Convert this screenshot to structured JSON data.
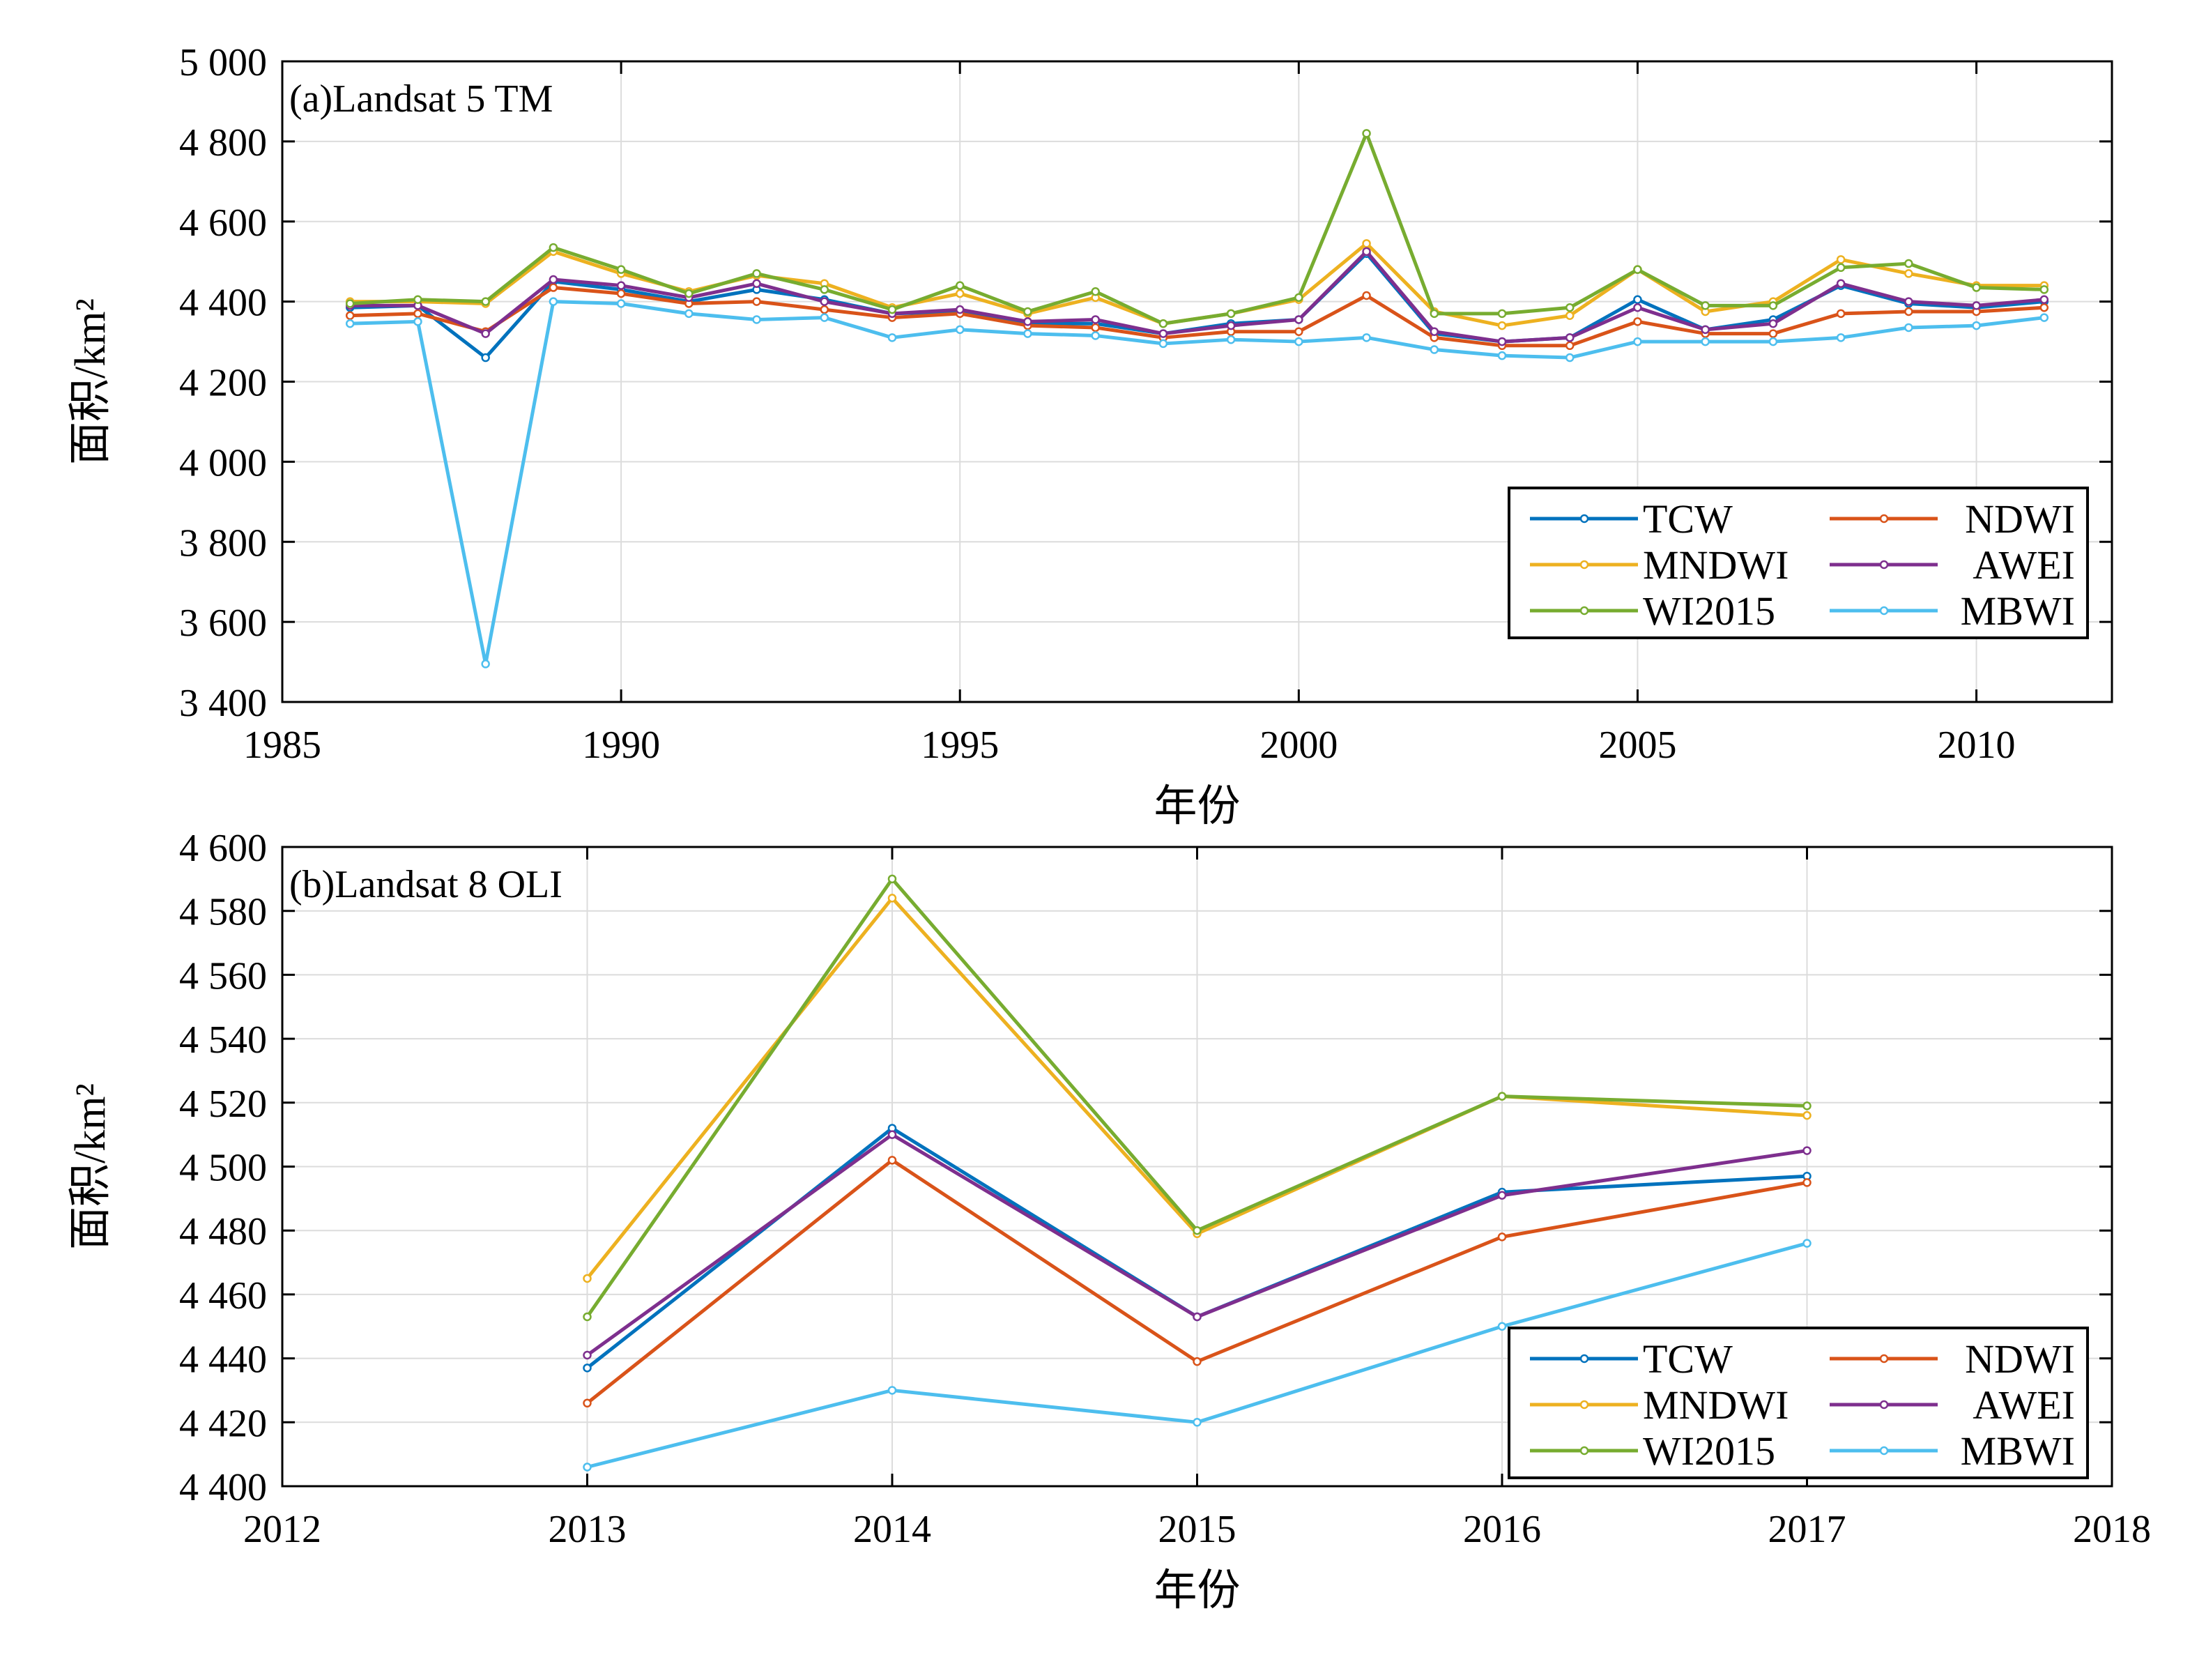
{
  "colors": {
    "TCW": "#0072BD",
    "NDWI": "#D95319",
    "MNDWI": "#EDB120",
    "AWEI": "#7E2F8E",
    "WI2015": "#77AC30",
    "MBWI": "#4DBEEE"
  },
  "chart_data": [
    {
      "type": "line",
      "title": "(a)Landsat 5 TM",
      "xlabel": "年份",
      "ylabel": "面积/km²",
      "xlim": [
        1985,
        2012
      ],
      "ylim": [
        3400,
        5000
      ],
      "xticks": [
        1985,
        1990,
        1995,
        2000,
        2005,
        2010
      ],
      "xtick_labels": [
        "1985",
        "1990",
        "1995",
        "2000",
        "2005",
        "2010"
      ],
      "yticks": [
        3400,
        3600,
        3800,
        4000,
        4200,
        4400,
        4600,
        4800,
        5000
      ],
      "ytick_labels": [
        "3 400",
        "3 600",
        "3 800",
        "4 000",
        "4 200",
        "4 400",
        "4 600",
        "4 800",
        "5 000"
      ],
      "grid": true,
      "legend_position": "lower-right",
      "x": [
        1986,
        1987,
        1988,
        1989,
        1990,
        1991,
        1992,
        1993,
        1994,
        1995,
        1996,
        1997,
        1998,
        1999,
        2000,
        2001,
        2002,
        2003,
        2004,
        2005,
        2006,
        2007,
        2008,
        2009,
        2010,
        2011
      ],
      "series": [
        {
          "name": "TCW",
          "values": [
            4385,
            4390,
            4260,
            4450,
            4430,
            4400,
            4430,
            4405,
            4370,
            4375,
            4345,
            4345,
            4320,
            4345,
            4355,
            4520,
            4320,
            4300,
            4310,
            4405,
            4330,
            4355,
            4440,
            4395,
            4385,
            4400
          ]
        },
        {
          "name": "NDWI",
          "values": [
            4365,
            4370,
            4325,
            4435,
            4420,
            4395,
            4400,
            4380,
            4360,
            4370,
            4340,
            4335,
            4310,
            4325,
            4325,
            4415,
            4310,
            4290,
            4290,
            4350,
            4320,
            4320,
            4370,
            4375,
            4375,
            4385
          ]
        },
        {
          "name": "MNDWI",
          "values": [
            4400,
            4400,
            4395,
            4525,
            4470,
            4425,
            4465,
            4445,
            4385,
            4420,
            4370,
            4410,
            4345,
            4370,
            4405,
            4545,
            4375,
            4340,
            4365,
            4480,
            4375,
            4400,
            4505,
            4470,
            4440,
            4440
          ]
        },
        {
          "name": "AWEI",
          "values": [
            4390,
            4390,
            4320,
            4455,
            4440,
            4410,
            4445,
            4400,
            4370,
            4380,
            4350,
            4355,
            4320,
            4340,
            4355,
            4525,
            4325,
            4300,
            4310,
            4385,
            4330,
            4345,
            4445,
            4400,
            4390,
            4405
          ]
        },
        {
          "name": "WI2015",
          "values": [
            4395,
            4405,
            4400,
            4535,
            4480,
            4420,
            4470,
            4430,
            4380,
            4440,
            4375,
            4425,
            4345,
            4370,
            4410,
            4820,
            4370,
            4370,
            4385,
            4480,
            4390,
            4390,
            4485,
            4495,
            4435,
            4430
          ]
        },
        {
          "name": "MBWI",
          "values": [
            4345,
            4350,
            3495,
            4400,
            4395,
            4370,
            4355,
            4360,
            4310,
            4330,
            4320,
            4315,
            4295,
            4305,
            4300,
            4310,
            4280,
            4265,
            4260,
            4300,
            4300,
            4300,
            4310,
            4335,
            4340,
            4360
          ]
        }
      ]
    },
    {
      "type": "line",
      "title": "(b)Landsat 8 OLI",
      "xlabel": "年份",
      "ylabel": "面积/km²",
      "xlim": [
        2012,
        2018
      ],
      "ylim": [
        4400,
        4600
      ],
      "xticks": [
        2012,
        2013,
        2014,
        2015,
        2016,
        2017,
        2018
      ],
      "xtick_labels": [
        "2012",
        "2013",
        "2014",
        "2015",
        "2016",
        "2017",
        "2018"
      ],
      "yticks": [
        4400,
        4420,
        4440,
        4460,
        4480,
        4500,
        4520,
        4540,
        4560,
        4580,
        4600
      ],
      "ytick_labels": [
        "4 400",
        "4 420",
        "4 440",
        "4 460",
        "4 480",
        "4 500",
        "4 520",
        "4 540",
        "4 560",
        "4 580",
        "4 600"
      ],
      "grid": true,
      "legend_position": "lower-right",
      "x": [
        2013,
        2014,
        2015,
        2016,
        2017
      ],
      "series": [
        {
          "name": "TCW",
          "values": [
            4437,
            4512,
            4453,
            4492,
            4497
          ]
        },
        {
          "name": "NDWI",
          "values": [
            4426,
            4502,
            4439,
            4478,
            4495
          ]
        },
        {
          "name": "MNDWI",
          "values": [
            4465,
            4584,
            4479,
            4522,
            4516
          ]
        },
        {
          "name": "AWEI",
          "values": [
            4441,
            4510,
            4453,
            4491,
            4505
          ]
        },
        {
          "name": "WI2015",
          "values": [
            4453,
            4590,
            4480,
            4522,
            4519
          ]
        },
        {
          "name": "MBWI",
          "values": [
            4406,
            4430,
            4420,
            4450,
            4476
          ]
        }
      ]
    }
  ]
}
